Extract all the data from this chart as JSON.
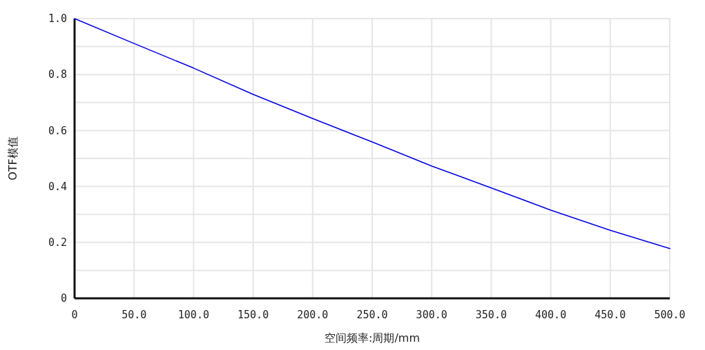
{
  "chart_data": {
    "type": "line",
    "xlabel": "空间频率:周期/mm",
    "ylabel": "OTF模值",
    "x": [
      0,
      50,
      100,
      150,
      200,
      250,
      300,
      350,
      400,
      450,
      500
    ],
    "series": [
      {
        "color": "#0000e0",
        "values": [
          1.0,
          0.911,
          0.823,
          0.729,
          0.643,
          0.559,
          0.473,
          0.395,
          0.315,
          0.243,
          0.178
        ]
      }
    ],
    "xlim": [
      0,
      500
    ],
    "ylim": [
      0,
      1
    ],
    "xticks": [
      0,
      {
        "value": 50,
        "label": "50.0"
      },
      {
        "value": 100,
        "label": "100.0"
      },
      {
        "value": 150,
        "label": "150.0"
      },
      {
        "value": 200,
        "label": "200.0"
      },
      {
        "value": 250,
        "label": "250.0"
      },
      {
        "value": 300,
        "label": "300.0"
      },
      {
        "value": 350,
        "label": "350.0"
      },
      {
        "value": 400,
        "label": "400.0"
      },
      {
        "value": 450,
        "label": "450.0"
      },
      {
        "value": 500,
        "label": "500.0"
      }
    ],
    "yticks": [
      0,
      {
        "value": 0.1,
        "label": null
      },
      0.2,
      {
        "value": 0.3,
        "label": null
      },
      0.4,
      {
        "value": 0.5,
        "label": null
      },
      0.6,
      {
        "value": 0.7,
        "label": null
      },
      0.8,
      {
        "value": 0.9,
        "label": null
      },
      {
        "value": 1,
        "label": "1.0"
      }
    ],
    "grid": true,
    "marker": "none",
    "line_style": "solid"
  }
}
